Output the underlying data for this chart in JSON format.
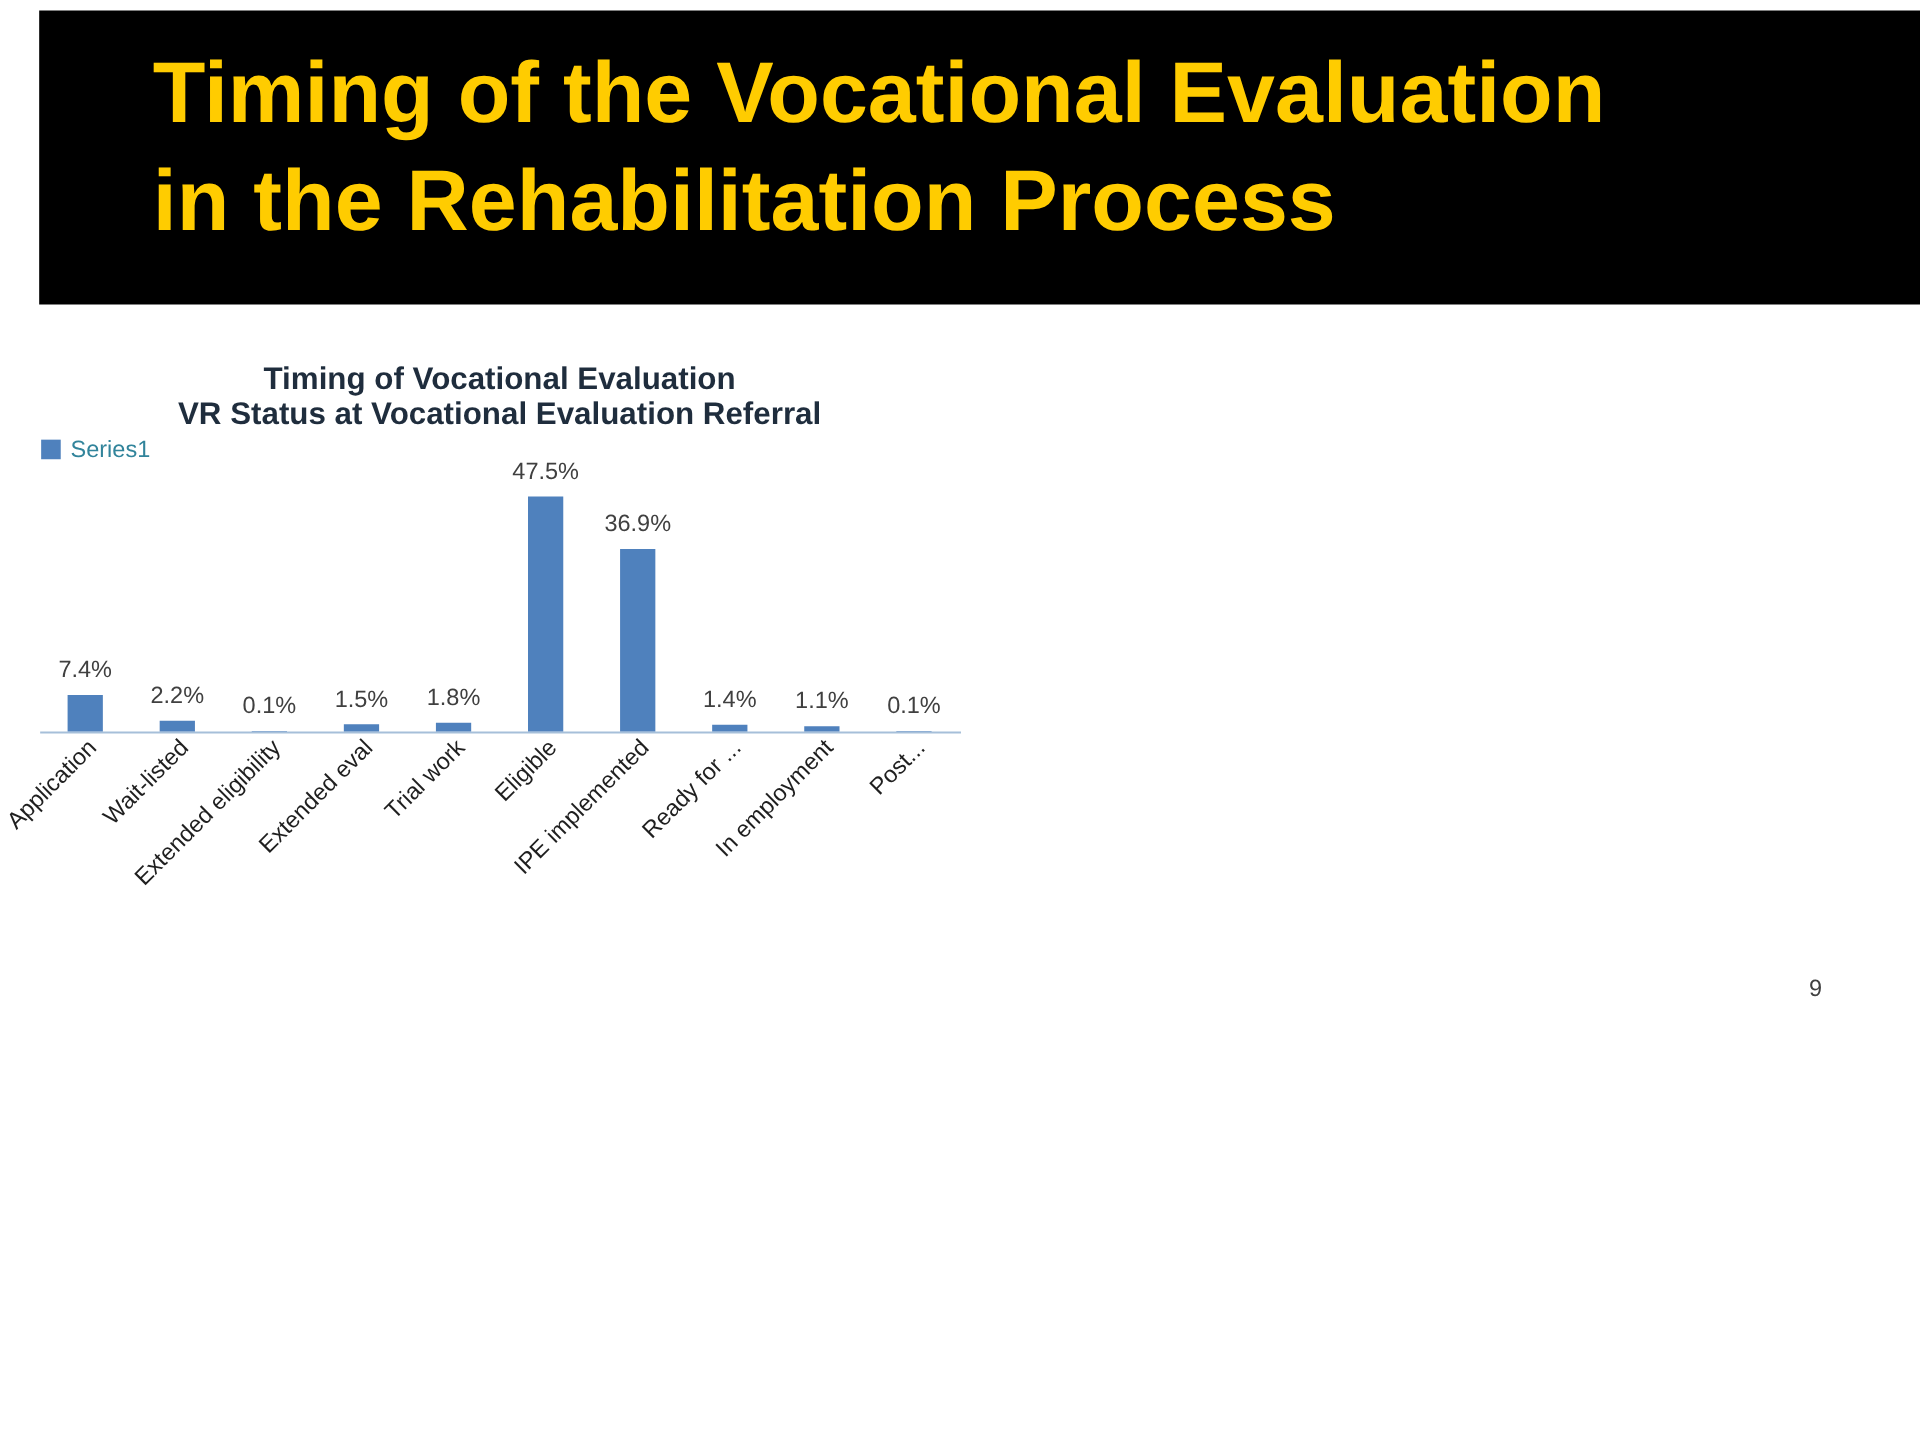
{
  "chart_data": {
    "type": "bar",
    "title": "Timing of the Vocational Evaluation\nin the Rehabilitation Process",
    "subtitle": "Timing of Vocational Evaluation\nVR Status at Vocational Evaluation Referral",
    "categories": [
      "Application",
      "Wait-listed",
      "Extended eligibility",
      "Extended eval",
      "Trial work",
      "Eligible",
      "IPE implemented",
      "Ready for ...",
      "In employment",
      "Post..."
    ],
    "series": [
      {
        "name": "Series1",
        "color": "#4f81bd",
        "values": [
          7.4,
          2.2,
          0.1,
          1.5,
          1.8,
          47.5,
          36.9,
          1.4,
          1.1,
          0.1
        ],
        "value_labels": [
          "7.4%",
          "2.2%",
          "0.1%",
          "1.5%",
          "1.8%",
          "47.5%",
          "36.9%",
          "1.4%",
          "1.1%",
          "0.1%"
        ]
      }
    ],
    "legend": "top",
    "grid": false,
    "tick_labels": "x",
    "annotations": [
      "9"
    ]
  }
}
